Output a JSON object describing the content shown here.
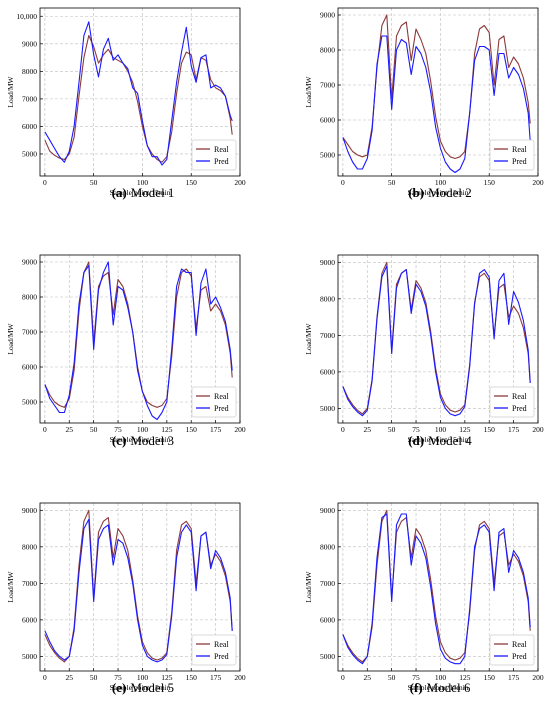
{
  "colors": {
    "real": "#8b3a3a",
    "pred": "#1a1aff",
    "grid": "#bdbdbd"
  },
  "chart_data": [
    {
      "type": "line",
      "panel_label": "(a)",
      "caption": "Model 1",
      "xlabel": "Sample point/15min",
      "ylabel": "Load/MW",
      "xlim": [
        -5,
        200
      ],
      "ylim": [
        4200,
        10300
      ],
      "xticks": [
        0,
        50,
        100,
        150,
        200
      ],
      "yticks": [
        5000,
        6000,
        7000,
        8000,
        9000,
        10000
      ],
      "ytick_labels": [
        "5000",
        "6000",
        "7000",
        "8000",
        "9000",
        "10,000"
      ],
      "grid": true,
      "legend_position": "lower-right",
      "x": [
        0,
        5,
        10,
        15,
        20,
        25,
        30,
        35,
        40,
        45,
        50,
        55,
        60,
        65,
        70,
        75,
        80,
        85,
        90,
        95,
        100,
        105,
        110,
        115,
        120,
        125,
        130,
        135,
        140,
        145,
        150,
        155,
        160,
        165,
        170,
        175,
        180,
        185,
        190,
        192
      ],
      "series": [
        {
          "name": "Real",
          "values": [
            5500,
            5100,
            4950,
            4850,
            4800,
            5000,
            5600,
            7100,
            8500,
            9300,
            8900,
            8300,
            8600,
            8800,
            8500,
            8400,
            8300,
            8000,
            7600,
            6900,
            6000,
            5300,
            5000,
            4800,
            4700,
            4900,
            5800,
            7200,
            8300,
            8700,
            8600,
            7700,
            8500,
            8400,
            7700,
            7400,
            7300,
            7100,
            6300,
            5700
          ]
        },
        {
          "name": "Pred",
          "values": [
            5800,
            5500,
            5200,
            4900,
            4700,
            5100,
            6000,
            7600,
            9300,
            9800,
            8600,
            7800,
            8800,
            9200,
            8400,
            8600,
            8300,
            8100,
            7400,
            7200,
            6200,
            5300,
            4900,
            4900,
            4600,
            4800,
            6200,
            7600,
            8700,
            9600,
            8200,
            7600,
            8500,
            8600,
            7400,
            7500,
            7400,
            7100,
            6400,
            6200
          ]
        }
      ]
    },
    {
      "type": "line",
      "panel_label": "(b)",
      "caption": "Model 2",
      "xlabel": "Sample point/15min",
      "ylabel": "Load/MW",
      "xlim": [
        -5,
        200
      ],
      "ylim": [
        4400,
        9200
      ],
      "xticks": [
        0,
        50,
        100,
        150,
        200
      ],
      "yticks": [
        5000,
        6000,
        7000,
        8000,
        9000
      ],
      "ytick_labels": [
        "5000",
        "6000",
        "7000",
        "8000",
        "9000"
      ],
      "grid": true,
      "legend_position": "lower-right",
      "x": [
        0,
        5,
        10,
        15,
        20,
        25,
        30,
        35,
        40,
        45,
        50,
        55,
        60,
        65,
        70,
        75,
        80,
        85,
        90,
        95,
        100,
        105,
        110,
        115,
        120,
        125,
        130,
        135,
        140,
        145,
        150,
        155,
        160,
        165,
        170,
        175,
        180,
        185,
        190,
        192
      ],
      "series": [
        {
          "name": "Real",
          "values": [
            5500,
            5300,
            5100,
            5000,
            4950,
            5000,
            5800,
            7500,
            8700,
            9000,
            6600,
            8400,
            8700,
            8800,
            7700,
            8600,
            8300,
            7900,
            7100,
            6100,
            5400,
            5100,
            4950,
            4900,
            4950,
            5100,
            6200,
            7900,
            8600,
            8700,
            8500,
            7000,
            8300,
            8400,
            7500,
            7800,
            7600,
            7200,
            6500,
            5900
          ]
        },
        {
          "name": "Pred",
          "values": [
            5500,
            5100,
            4800,
            4600,
            4600,
            4900,
            5700,
            7600,
            8400,
            8400,
            6300,
            8000,
            8300,
            8200,
            7300,
            8100,
            7900,
            7500,
            6800,
            5800,
            5200,
            4800,
            4600,
            4500,
            4600,
            4900,
            6200,
            7700,
            8100,
            8100,
            8000,
            6700,
            7900,
            7900,
            7200,
            7500,
            7300,
            6900,
            6200,
            5400
          ]
        }
      ]
    },
    {
      "type": "line",
      "panel_label": "(c)",
      "caption": "Model 3",
      "xlabel": "Sample point/15min",
      "ylabel": "Load/MW",
      "xlim": [
        -5,
        200
      ],
      "ylim": [
        4400,
        9200
      ],
      "xticks": [
        0,
        25,
        50,
        75,
        100,
        125,
        150,
        175,
        200
      ],
      "yticks": [
        5000,
        6000,
        7000,
        8000,
        9000
      ],
      "ytick_labels": [
        "5000",
        "6000",
        "7000",
        "8000",
        "9000"
      ],
      "grid": true,
      "legend_position": "lower-right",
      "x": [
        0,
        5,
        10,
        15,
        20,
        25,
        30,
        35,
        40,
        45,
        50,
        55,
        60,
        65,
        70,
        75,
        80,
        85,
        90,
        95,
        100,
        105,
        110,
        115,
        120,
        125,
        130,
        135,
        140,
        145,
        150,
        155,
        160,
        165,
        170,
        175,
        180,
        185,
        190,
        192
      ],
      "series": [
        {
          "name": "Real",
          "values": [
            5500,
            5200,
            5000,
            4900,
            4850,
            5100,
            5900,
            7600,
            8700,
            9000,
            6700,
            8300,
            8600,
            8700,
            7500,
            8500,
            8300,
            7800,
            7000,
            6000,
            5300,
            5000,
            4900,
            4850,
            4900,
            5100,
            6300,
            8000,
            8700,
            8800,
            8600,
            7100,
            8200,
            8300,
            7600,
            7800,
            7600,
            7200,
            6400,
            5700
          ]
        },
        {
          "name": "Pred",
          "values": [
            5500,
            5100,
            4900,
            4700,
            4700,
            5200,
            6100,
            7800,
            8700,
            8900,
            6500,
            8200,
            8700,
            9000,
            7200,
            8300,
            8200,
            7700,
            7000,
            5900,
            5300,
            4900,
            4600,
            4500,
            4700,
            5000,
            6500,
            8300,
            8800,
            8700,
            8700,
            6900,
            8400,
            8800,
            7800,
            8000,
            7700,
            7300,
            6500,
            5900
          ]
        }
      ]
    },
    {
      "type": "line",
      "panel_label": "(d)",
      "caption": "Model 4",
      "xlabel": "Sample point/15min",
      "ylabel": "Load/MW",
      "xlim": [
        -5,
        200
      ],
      "ylim": [
        4600,
        9200
      ],
      "xticks": [
        0,
        25,
        50,
        75,
        100,
        125,
        150,
        175,
        200
      ],
      "yticks": [
        5000,
        6000,
        7000,
        8000,
        9000
      ],
      "ytick_labels": [
        "5000",
        "6000",
        "7000",
        "8000",
        "9000"
      ],
      "grid": true,
      "legend_position": "lower-right",
      "x": [
        0,
        5,
        10,
        15,
        20,
        25,
        30,
        35,
        40,
        45,
        50,
        55,
        60,
        65,
        70,
        75,
        80,
        85,
        90,
        95,
        100,
        105,
        110,
        115,
        120,
        125,
        130,
        135,
        140,
        145,
        150,
        155,
        160,
        165,
        170,
        175,
        180,
        185,
        190,
        192
      ],
      "series": [
        {
          "name": "Real",
          "values": [
            5600,
            5300,
            5100,
            4950,
            4850,
            5000,
            5800,
            7500,
            8700,
            9000,
            6600,
            8400,
            8700,
            8800,
            7700,
            8500,
            8300,
            7900,
            7100,
            6100,
            5400,
            5100,
            4950,
            4900,
            4950,
            5100,
            6200,
            7900,
            8600,
            8700,
            8500,
            7000,
            8300,
            8400,
            7500,
            7800,
            7600,
            7200,
            6500,
            5700
          ]
        },
        {
          "name": "Pred",
          "values": [
            5600,
            5250,
            5050,
            4900,
            4800,
            4950,
            5750,
            7450,
            8600,
            8900,
            6500,
            8300,
            8700,
            8800,
            7600,
            8400,
            8200,
            7800,
            7000,
            6000,
            5300,
            5000,
            4850,
            4800,
            4850,
            5050,
            6150,
            7850,
            8700,
            8800,
            8600,
            6900,
            8500,
            8700,
            7300,
            8200,
            7900,
            7400,
            6600,
            5700
          ]
        }
      ]
    },
    {
      "type": "line",
      "panel_label": "(e)",
      "caption": "Model 5",
      "xlabel": "Sample point/15min",
      "ylabel": "Load/MW",
      "xlim": [
        -5,
        200
      ],
      "ylim": [
        4600,
        9200
      ],
      "xticks": [
        0,
        25,
        50,
        75,
        100,
        125,
        150,
        175,
        200
      ],
      "yticks": [
        5000,
        6000,
        7000,
        8000,
        9000
      ],
      "ytick_labels": [
        "5000",
        "6000",
        "7000",
        "8000",
        "9000"
      ],
      "grid": true,
      "legend_position": "lower-right",
      "x": [
        0,
        5,
        10,
        15,
        20,
        25,
        30,
        35,
        40,
        45,
        50,
        55,
        60,
        65,
        70,
        75,
        80,
        85,
        90,
        95,
        100,
        105,
        110,
        115,
        120,
        125,
        130,
        135,
        140,
        145,
        150,
        155,
        160,
        165,
        170,
        175,
        180,
        185,
        190,
        192
      ],
      "series": [
        {
          "name": "Real",
          "values": [
            5600,
            5300,
            5100,
            4950,
            4850,
            5000,
            5800,
            7500,
            8700,
            9000,
            6600,
            8400,
            8700,
            8800,
            7700,
            8500,
            8300,
            7900,
            7100,
            6100,
            5400,
            5100,
            4950,
            4900,
            4950,
            5100,
            6200,
            7900,
            8600,
            8700,
            8500,
            7000,
            8300,
            8400,
            7500,
            7800,
            7600,
            7200,
            6500,
            5700
          ]
        },
        {
          "name": "Pred",
          "values": [
            5700,
            5400,
            5150,
            5000,
            4900,
            5000,
            5700,
            7300,
            8500,
            8750,
            6500,
            8200,
            8500,
            8600,
            7500,
            8200,
            8100,
            7700,
            7000,
            6000,
            5300,
            5000,
            4900,
            4850,
            4900,
            5050,
            6100,
            7700,
            8400,
            8600,
            8400,
            6800,
            8300,
            8400,
            7400,
            7900,
            7700,
            7300,
            6600,
            5700
          ]
        }
      ]
    },
    {
      "type": "line",
      "panel_label": "(f)",
      "caption": "Model 6",
      "xlabel": "Sample point/15min",
      "ylabel": "Load/MW",
      "xlim": [
        -5,
        200
      ],
      "ylim": [
        4600,
        9200
      ],
      "xticks": [
        0,
        25,
        50,
        75,
        100,
        125,
        150,
        175,
        200
      ],
      "yticks": [
        5000,
        6000,
        7000,
        8000,
        9000
      ],
      "ytick_labels": [
        "5000",
        "6000",
        "7000",
        "8000",
        "9000"
      ],
      "grid": true,
      "legend_position": "lower-right",
      "x": [
        0,
        5,
        10,
        15,
        20,
        25,
        30,
        35,
        40,
        45,
        50,
        55,
        60,
        65,
        70,
        75,
        80,
        85,
        90,
        95,
        100,
        105,
        110,
        115,
        120,
        125,
        130,
        135,
        140,
        145,
        150,
        155,
        160,
        165,
        170,
        175,
        180,
        185,
        190,
        192
      ],
      "series": [
        {
          "name": "Real",
          "values": [
            5600,
            5300,
            5100,
            4950,
            4850,
            5000,
            5800,
            7500,
            8700,
            9000,
            6600,
            8400,
            8700,
            8800,
            7700,
            8500,
            8300,
            7900,
            7100,
            6100,
            5400,
            5100,
            4950,
            4900,
            4950,
            5100,
            6200,
            7900,
            8600,
            8700,
            8500,
            7000,
            8300,
            8400,
            7500,
            7800,
            7600,
            7200,
            6500,
            5700
          ]
        },
        {
          "name": "Pred",
          "values": [
            5600,
            5250,
            5050,
            4900,
            4800,
            5000,
            5900,
            7700,
            8800,
            8900,
            6500,
            8600,
            8900,
            8900,
            7500,
            8300,
            8100,
            7700,
            6900,
            5900,
            5200,
            4950,
            4850,
            4800,
            4800,
            5000,
            6300,
            8000,
            8500,
            8600,
            8400,
            6800,
            8400,
            8500,
            7300,
            7900,
            7700,
            7300,
            6600,
            5800
          ]
        }
      ]
    }
  ]
}
